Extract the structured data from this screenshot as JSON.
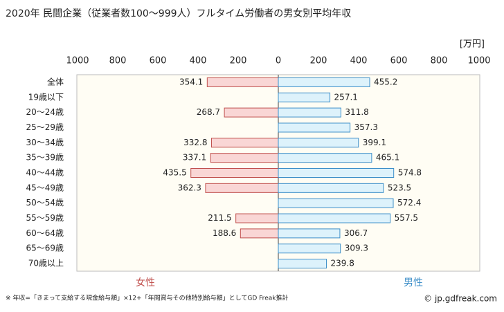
{
  "chart_data": {
    "type": "butterfly",
    "title": "2020年 民間企業（従業者数100〜999人）フルタイム労働者の男女別平均年収",
    "unit": "[万円]",
    "categories": [
      "全体",
      "19歳以下",
      "20〜24歳",
      "25〜29歳",
      "30〜34歳",
      "35〜39歳",
      "40〜44歳",
      "45〜49歳",
      "50〜54歳",
      "55〜59歳",
      "60〜64歳",
      "65〜69歳",
      "70歳以上"
    ],
    "series": [
      {
        "name": "女性",
        "color": "#c0504d",
        "fill": "#f9d6d5",
        "side": "left",
        "values": [
          354.1,
          null,
          268.7,
          null,
          332.8,
          337.1,
          435.5,
          362.3,
          null,
          211.5,
          188.6,
          null,
          null
        ]
      },
      {
        "name": "男性",
        "color": "#3c8ec8",
        "fill": "#ddf2fb",
        "side": "right",
        "values": [
          455.2,
          257.1,
          311.8,
          357.3,
          399.1,
          465.1,
          574.8,
          523.5,
          572.4,
          557.5,
          306.7,
          309.3,
          239.8
        ]
      }
    ],
    "xlim": [
      0,
      1000
    ],
    "xticks": [
      0,
      200,
      400,
      600,
      800,
      1000
    ],
    "grid": false
  },
  "footnote": "※ 年収=「きまって支給する現金給与額」×12+「年間賞与その他特別給与額」としてGD Freak推計",
  "credit": "© jp.gdfreak.com"
}
